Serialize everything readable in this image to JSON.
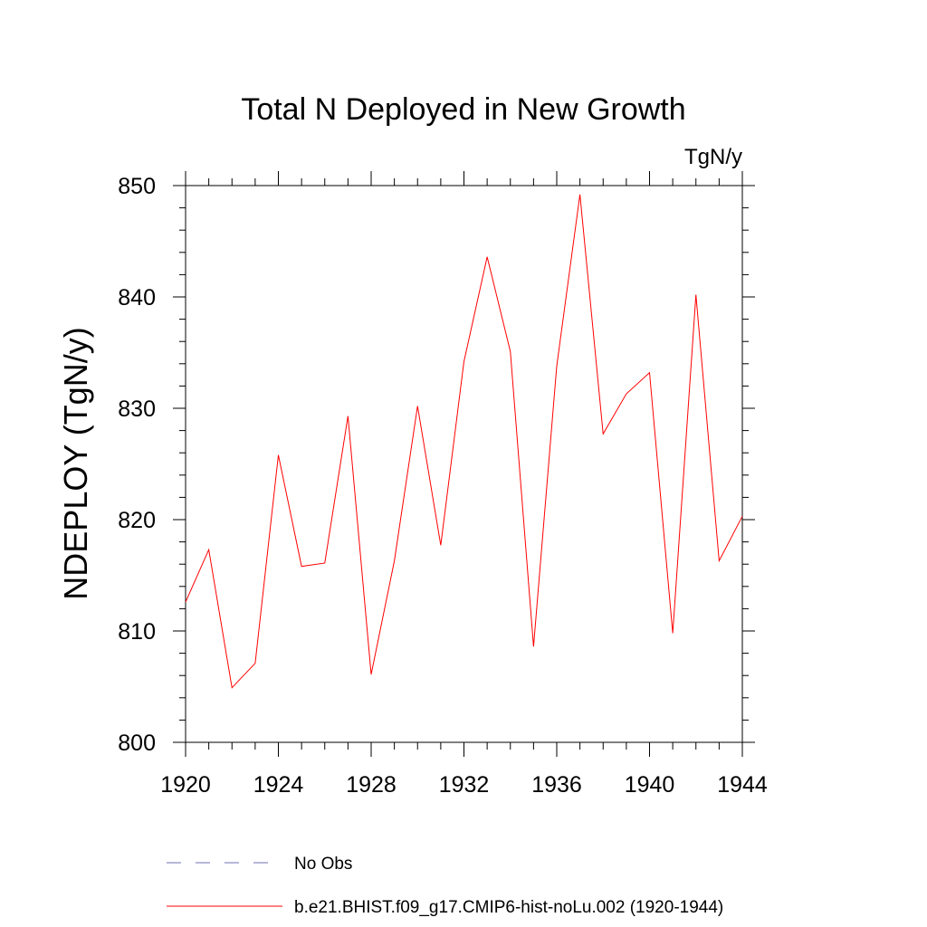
{
  "chart_data": {
    "type": "line",
    "title": "Total N Deployed in New Growth",
    "units_label": "TgN/y",
    "xlabel": "",
    "ylabel": "NDEPLOY  (TgN/y)",
    "xlim": [
      1920,
      1944
    ],
    "ylim": [
      800,
      850
    ],
    "x_ticks": [
      1920,
      1924,
      1928,
      1932,
      1936,
      1940,
      1944
    ],
    "y_ticks": [
      800,
      810,
      820,
      830,
      840,
      850
    ],
    "grid": false,
    "legend_position": "bottom",
    "series": [
      {
        "name": "b.e21.BHIST.f09_g17.CMIP6-hist-noLu.002 (1920-1944)",
        "color": "#ff0000",
        "style": "solid",
        "x": [
          1920,
          1921,
          1922,
          1923,
          1924,
          1925,
          1926,
          1927,
          1928,
          1929,
          1930,
          1931,
          1932,
          1933,
          1934,
          1935,
          1936,
          1937,
          1938,
          1939,
          1940,
          1941,
          1942,
          1943,
          1944
        ],
        "values": [
          812.6,
          817.3,
          804.9,
          807.1,
          825.8,
          815.8,
          816.1,
          829.3,
          806.1,
          816.3,
          830.2,
          817.7,
          834.2,
          843.6,
          835.1,
          808.6,
          833.8,
          849.2,
          827.7,
          831.3,
          833.2,
          809.8,
          840.2,
          816.3,
          820.3
        ]
      }
    ],
    "legend": [
      {
        "label": "No Obs",
        "color": "#6f6fb0",
        "style": "dashed"
      },
      {
        "label": "b.e21.BHIST.f09_g17.CMIP6-hist-noLu.002 (1920-1944)",
        "color": "#ff0000",
        "style": "solid"
      }
    ]
  }
}
